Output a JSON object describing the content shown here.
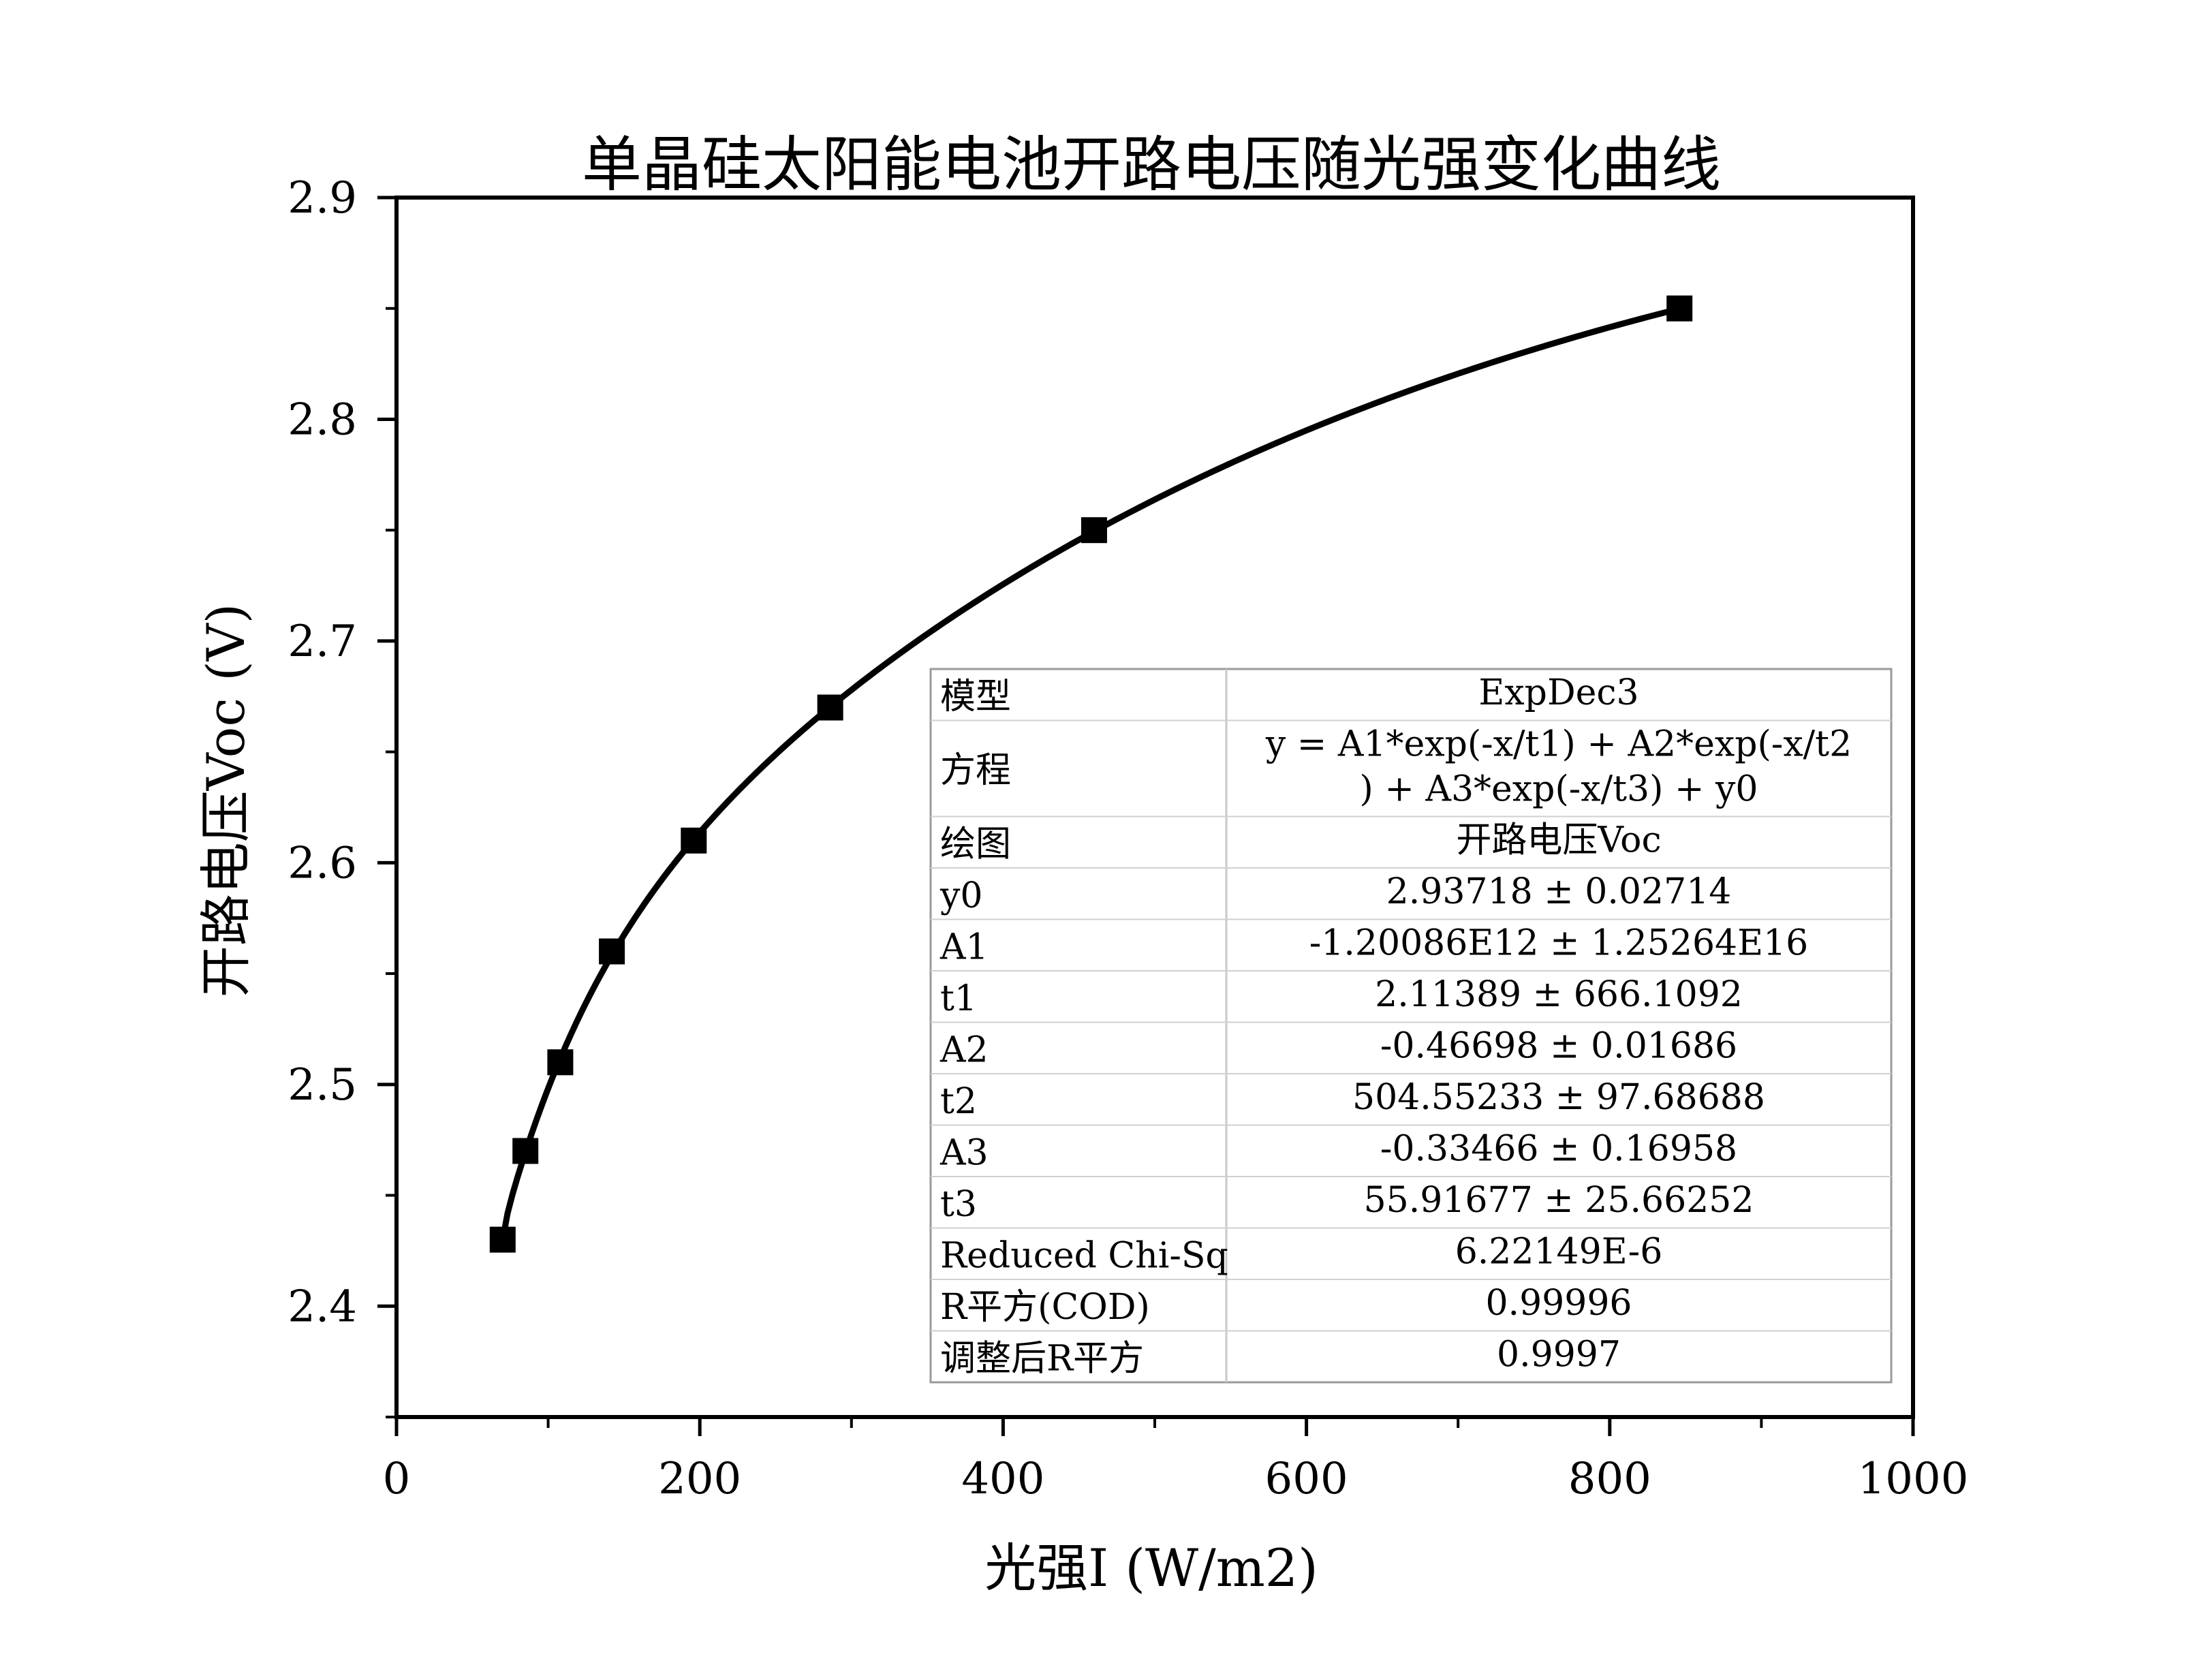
{
  "chart_data": {
    "type": "scatter",
    "title": "单晶硅太阳能电池开路电压随光强变化曲线",
    "xlabel": "光强I (W/m2)",
    "ylabel": "开路电压Voc (V)",
    "xlim": [
      0,
      1000
    ],
    "ylim": [
      2.35,
      2.9
    ],
    "xticks": [
      "0",
      "200",
      "400",
      "600",
      "800",
      "1000"
    ],
    "yticks": [
      "2.4",
      "2.5",
      "2.6",
      "2.7",
      "2.8",
      "2.9"
    ],
    "grid": false,
    "series": [
      {
        "x": [
          70,
          85,
          108,
          142,
          196,
          286,
          460,
          846
        ],
        "y": [
          2.43,
          2.47,
          2.51,
          2.56,
          2.61,
          2.67,
          2.75,
          2.85
        ]
      }
    ],
    "fit": {
      "model": "ExpDec3",
      "y0": 2.93718,
      "A1": -1200860000000.0,
      "t1": 2.11389,
      "A2": -0.46698,
      "t2": 504.55233,
      "A3": -0.33466,
      "t3": 55.91677
    },
    "table": {
      "rows": [
        [
          "模型",
          "ExpDec3"
        ],
        [
          "方程",
          "y = A1*exp(-x/t1) + A2*exp(-x/t2",
          ") + A3*exp(-x/t3) + y0"
        ],
        [
          "绘图",
          "开路电压Voc"
        ],
        [
          "y0",
          "2.93718 ± 0.02714"
        ],
        [
          "A1",
          "-1.20086E12 ± 1.25264E16"
        ],
        [
          "t1",
          "2.11389 ± 666.1092"
        ],
        [
          "A2",
          "-0.46698 ± 0.01686"
        ],
        [
          "t2",
          "504.55233 ± 97.68688"
        ],
        [
          "A3",
          "-0.33466 ± 0.16958"
        ],
        [
          "t3",
          "55.91677 ± 25.66252"
        ],
        [
          "Reduced Chi-Sq",
          "6.22149E-6"
        ],
        [
          "R平方(COD)",
          "0.99996"
        ],
        [
          "调整后R平方",
          "0.9997"
        ]
      ]
    }
  }
}
